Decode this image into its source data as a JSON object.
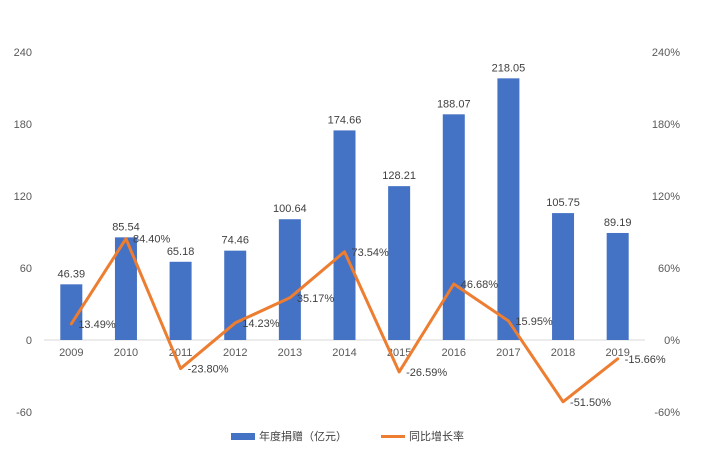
{
  "chart_data": {
    "type": "bar",
    "categories": [
      "2009",
      "2010",
      "2011",
      "2012",
      "2013",
      "2014",
      "2015",
      "2016",
      "2017",
      "2018",
      "2019"
    ],
    "series": [
      {
        "name": "年度捐赠（亿元）",
        "type": "bar",
        "axis": "left",
        "color": "#4472C4",
        "values": [
          46.39,
          85.54,
          65.18,
          74.46,
          100.64,
          174.66,
          128.21,
          188.07,
          218.05,
          105.75,
          89.19
        ],
        "labels": [
          "46.39",
          "85.54",
          "65.18",
          "74.46",
          "100.64",
          "174.66",
          "128.21",
          "188.07",
          "218.05",
          "105.75",
          "89.19"
        ]
      },
      {
        "name": "同比增长率",
        "type": "line",
        "axis": "right",
        "color": "#ED7D31",
        "values": [
          13.49,
          84.4,
          -23.8,
          14.23,
          35.17,
          73.54,
          -26.59,
          46.68,
          15.95,
          -51.5,
          -15.66
        ],
        "labels": [
          "13.49%",
          "84.40%",
          "-23.80%",
          "14.23%",
          "35.17%",
          "73.54%",
          "-26.59%",
          "46.68%",
          "15.95%",
          "-51.50%",
          "-15.66%"
        ]
      }
    ],
    "y_left": {
      "ylim": [
        -60,
        240
      ],
      "ticks": [
        "240",
        "180",
        "120",
        "60",
        "0",
        "-60"
      ],
      "tick_values": [
        240,
        180,
        120,
        60,
        0,
        -60
      ]
    },
    "y_right": {
      "ylim": [
        -60,
        240
      ],
      "ticks": [
        "240%",
        "180%",
        "120%",
        "60%",
        "0%",
        "-60%"
      ],
      "tick_values": [
        240,
        180,
        120,
        60,
        0,
        -60
      ]
    },
    "title": "",
    "xlabel": "",
    "ylabel": "",
    "grid": false,
    "legend_position": "bottom"
  }
}
